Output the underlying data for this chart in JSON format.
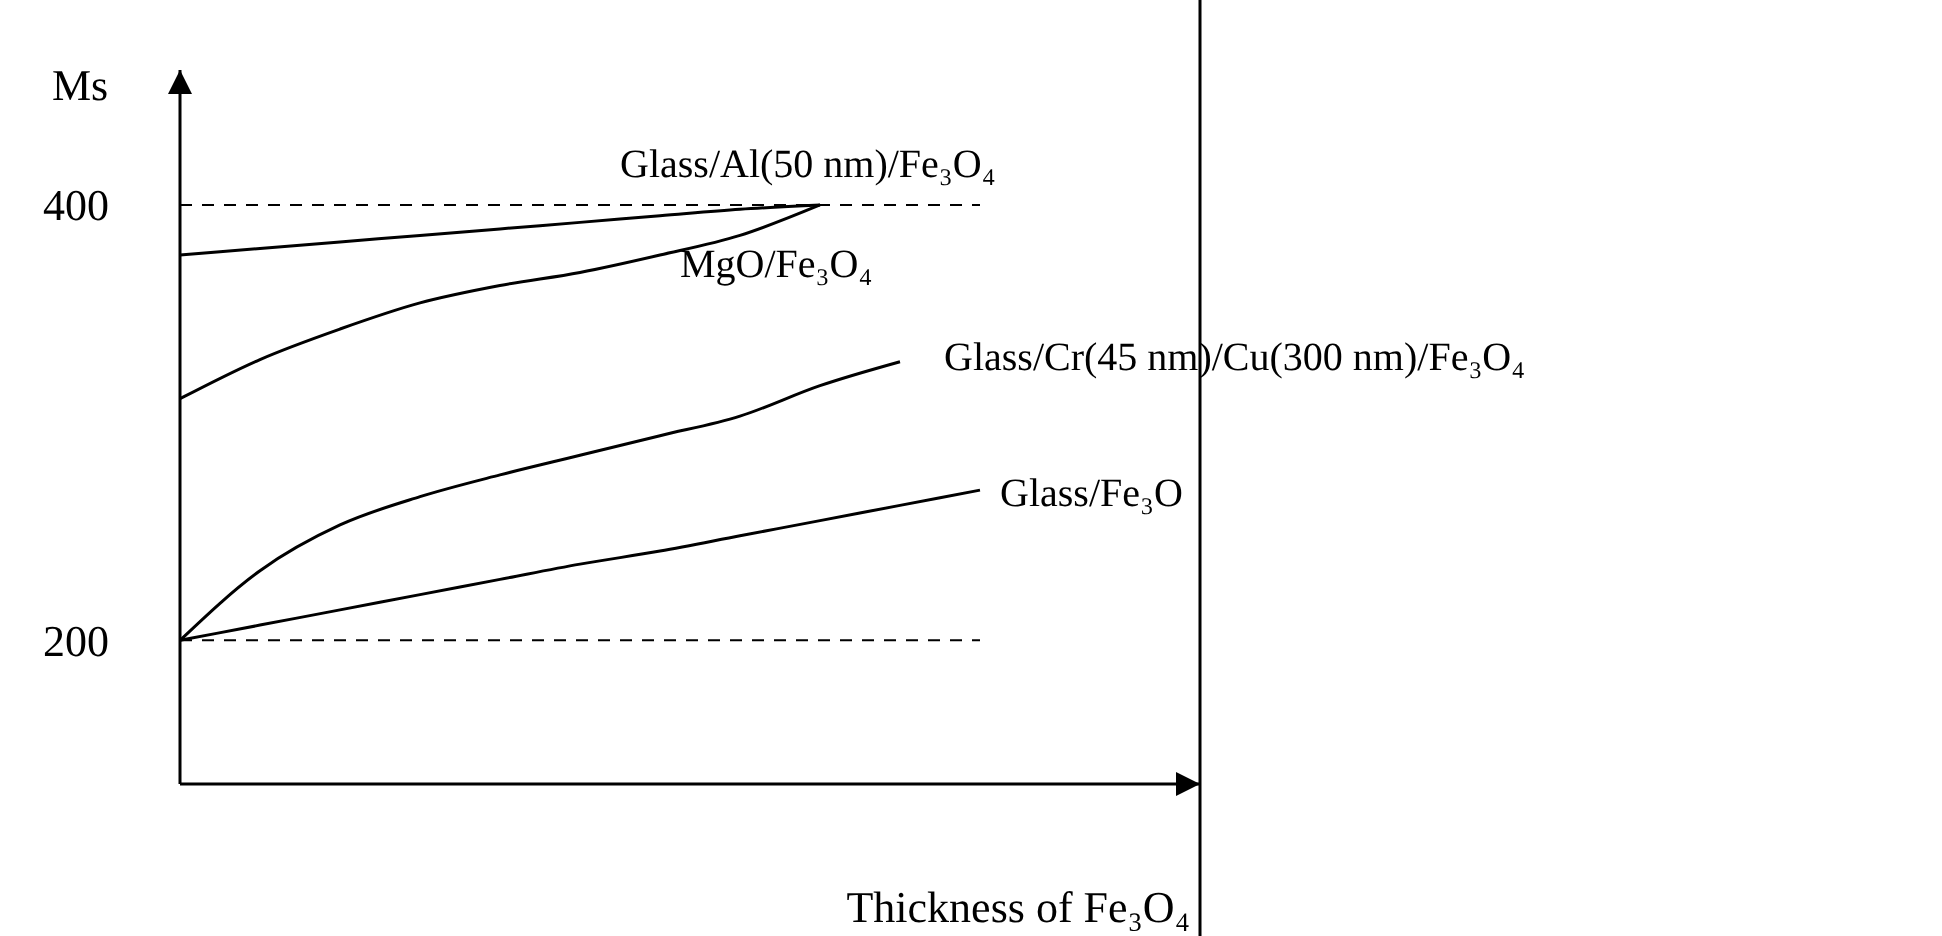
{
  "chart_data": {
    "type": "line",
    "ylabel": "Ms",
    "xlabel": "Thickness of Fe₃O₄",
    "categories": [
      null,
      null,
      null,
      null,
      null,
      null,
      null,
      null,
      null,
      null,
      null,
      null,
      null
    ],
    "ylim": [
      134,
      462
    ],
    "yticks": [
      200,
      400
    ],
    "tick_labels": "y",
    "grid": false,
    "marker": "none",
    "line_style": "solid",
    "series": [
      {
        "name": "Glass/Al(50 nm)/Fe₃O₄",
        "color": "#000000",
        "values": [
          377,
          380,
          383,
          386,
          389,
          392,
          395,
          398,
          400,
          null,
          null,
          null,
          null
        ]
      },
      {
        "name": "MgO/Fe₃O₄",
        "color": "#000000",
        "values": [
          311,
          329,
          343,
          355,
          363,
          369,
          377,
          386,
          400,
          null,
          null,
          null,
          null
        ]
      },
      {
        "name": "Glass/Cr(45 nm)/Cu(300 nm)/Fe₃O₄",
        "color": "#000000",
        "values": [
          200,
          232,
          253,
          266,
          276,
          285,
          294,
          303,
          317,
          328,
          null,
          null,
          null
        ]
      },
      {
        "name": "Glass/Fe₃O",
        "color": "#000000",
        "values": [
          200,
          207,
          214,
          221,
          228,
          235,
          241,
          248,
          255,
          262,
          269,
          null,
          null
        ]
      }
    ],
    "ref_lines": [
      {
        "axis": "y",
        "value": 200,
        "line_style": "dashed",
        "color": "#000000"
      },
      {
        "axis": "y",
        "value": 400,
        "line_style": "dashed",
        "color": "#000000"
      }
    ]
  }
}
